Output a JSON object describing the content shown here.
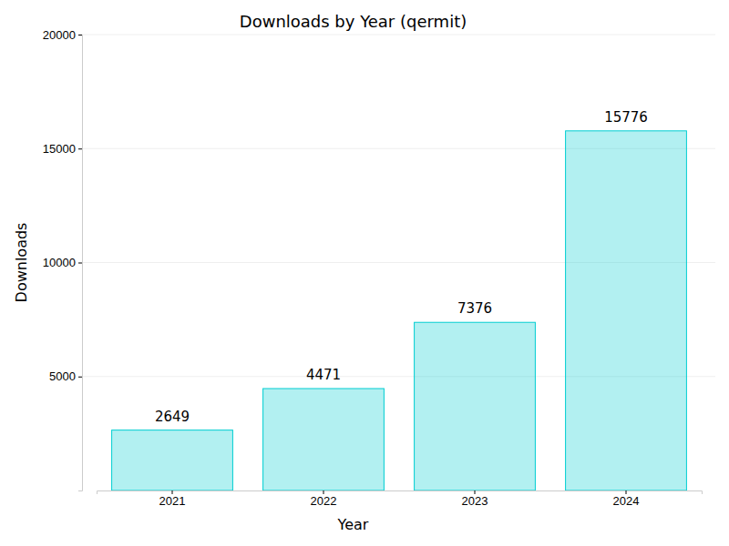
{
  "chart_data": {
    "type": "bar",
    "title": "Downloads by Year (qermit)",
    "x_label": "Year",
    "y_label": "Downloads",
    "categories": [
      "2021",
      "2022",
      "2023",
      "2024"
    ],
    "values": [
      2649,
      4471,
      7376,
      15776
    ],
    "color": "#00ced1",
    "ylim": [
      0,
      20000
    ],
    "yticks": [
      5000,
      10000,
      15000,
      20000
    ],
    "grid": true,
    "data_labels": true
  }
}
